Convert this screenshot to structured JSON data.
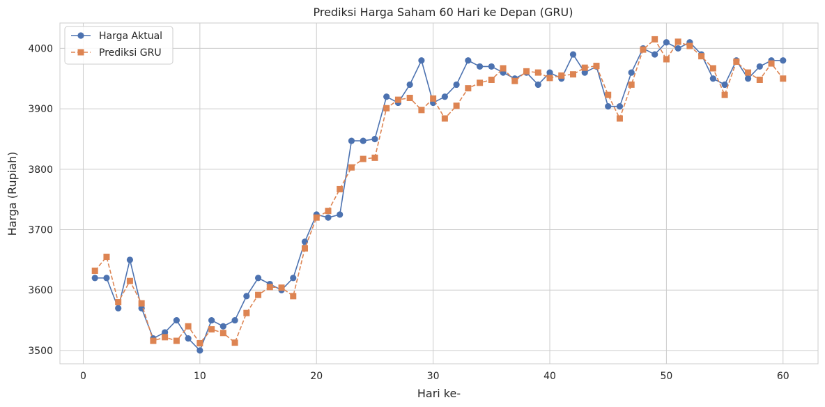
{
  "chart_data": {
    "type": "line",
    "title": "Prediksi Harga Saham 60 Hari ke Depan (GRU)",
    "xlabel": "Hari ke-",
    "ylabel": "Harga (Rupiah)",
    "xlim": [
      -2,
      63
    ],
    "ylim": [
      3478,
      4042
    ],
    "xticks": [
      0,
      10,
      20,
      30,
      40,
      50,
      60
    ],
    "yticks": [
      3500,
      3600,
      3700,
      3800,
      3900,
      4000
    ],
    "grid": true,
    "legend_position": "upper-left",
    "x": [
      1,
      2,
      3,
      4,
      5,
      6,
      7,
      8,
      9,
      10,
      11,
      12,
      13,
      14,
      15,
      16,
      17,
      18,
      19,
      20,
      21,
      22,
      23,
      24,
      25,
      26,
      27,
      28,
      29,
      30,
      31,
      32,
      33,
      34,
      35,
      36,
      37,
      38,
      39,
      40,
      41,
      42,
      43,
      44,
      45,
      46,
      47,
      48,
      49,
      50,
      51,
      52,
      53,
      54,
      55,
      56,
      57,
      58,
      59,
      60
    ],
    "series": [
      {
        "name": "Harga Aktual",
        "color": "#4c72b0",
        "marker": "circle",
        "linestyle": "solid",
        "values": [
          3620,
          3620,
          3570,
          3650,
          3570,
          3520,
          3530,
          3550,
          3520,
          3500,
          3550,
          3540,
          3550,
          3590,
          3620,
          3610,
          3600,
          3620,
          3680,
          3725,
          3720,
          3725,
          3847,
          3847,
          3850,
          3920,
          3910,
          3940,
          3980,
          3910,
          3920,
          3940,
          3980,
          3970,
          3970,
          3960,
          3950,
          3960,
          3940,
          3960,
          3950,
          3990,
          3960,
          3970,
          3904,
          3904,
          3960,
          4000,
          3990,
          4010,
          4000,
          4010,
          3990,
          3950,
          3940,
          3980,
          3950,
          3970,
          3980,
          3980
        ]
      },
      {
        "name": "Prediksi GRU",
        "color": "#dd8452",
        "marker": "square",
        "linestyle": "dashed",
        "values": [
          3632,
          3655,
          3580,
          3615,
          3578,
          3516,
          3522,
          3516,
          3540,
          3512,
          3535,
          3529,
          3513,
          3562,
          3592,
          3605,
          3604,
          3590,
          3669,
          3720,
          3731,
          3767,
          3803,
          3817,
          3819,
          3901,
          3915,
          3918,
          3898,
          3917,
          3884,
          3905,
          3934,
          3943,
          3948,
          3967,
          3946,
          3962,
          3960,
          3951,
          3955,
          3957,
          3968,
          3971,
          3923,
          3884,
          3940,
          3998,
          4015,
          3982,
          4011,
          4004,
          3987,
          3967,
          3923,
          3978,
          3960,
          3948,
          3975,
          3950
        ]
      }
    ]
  }
}
